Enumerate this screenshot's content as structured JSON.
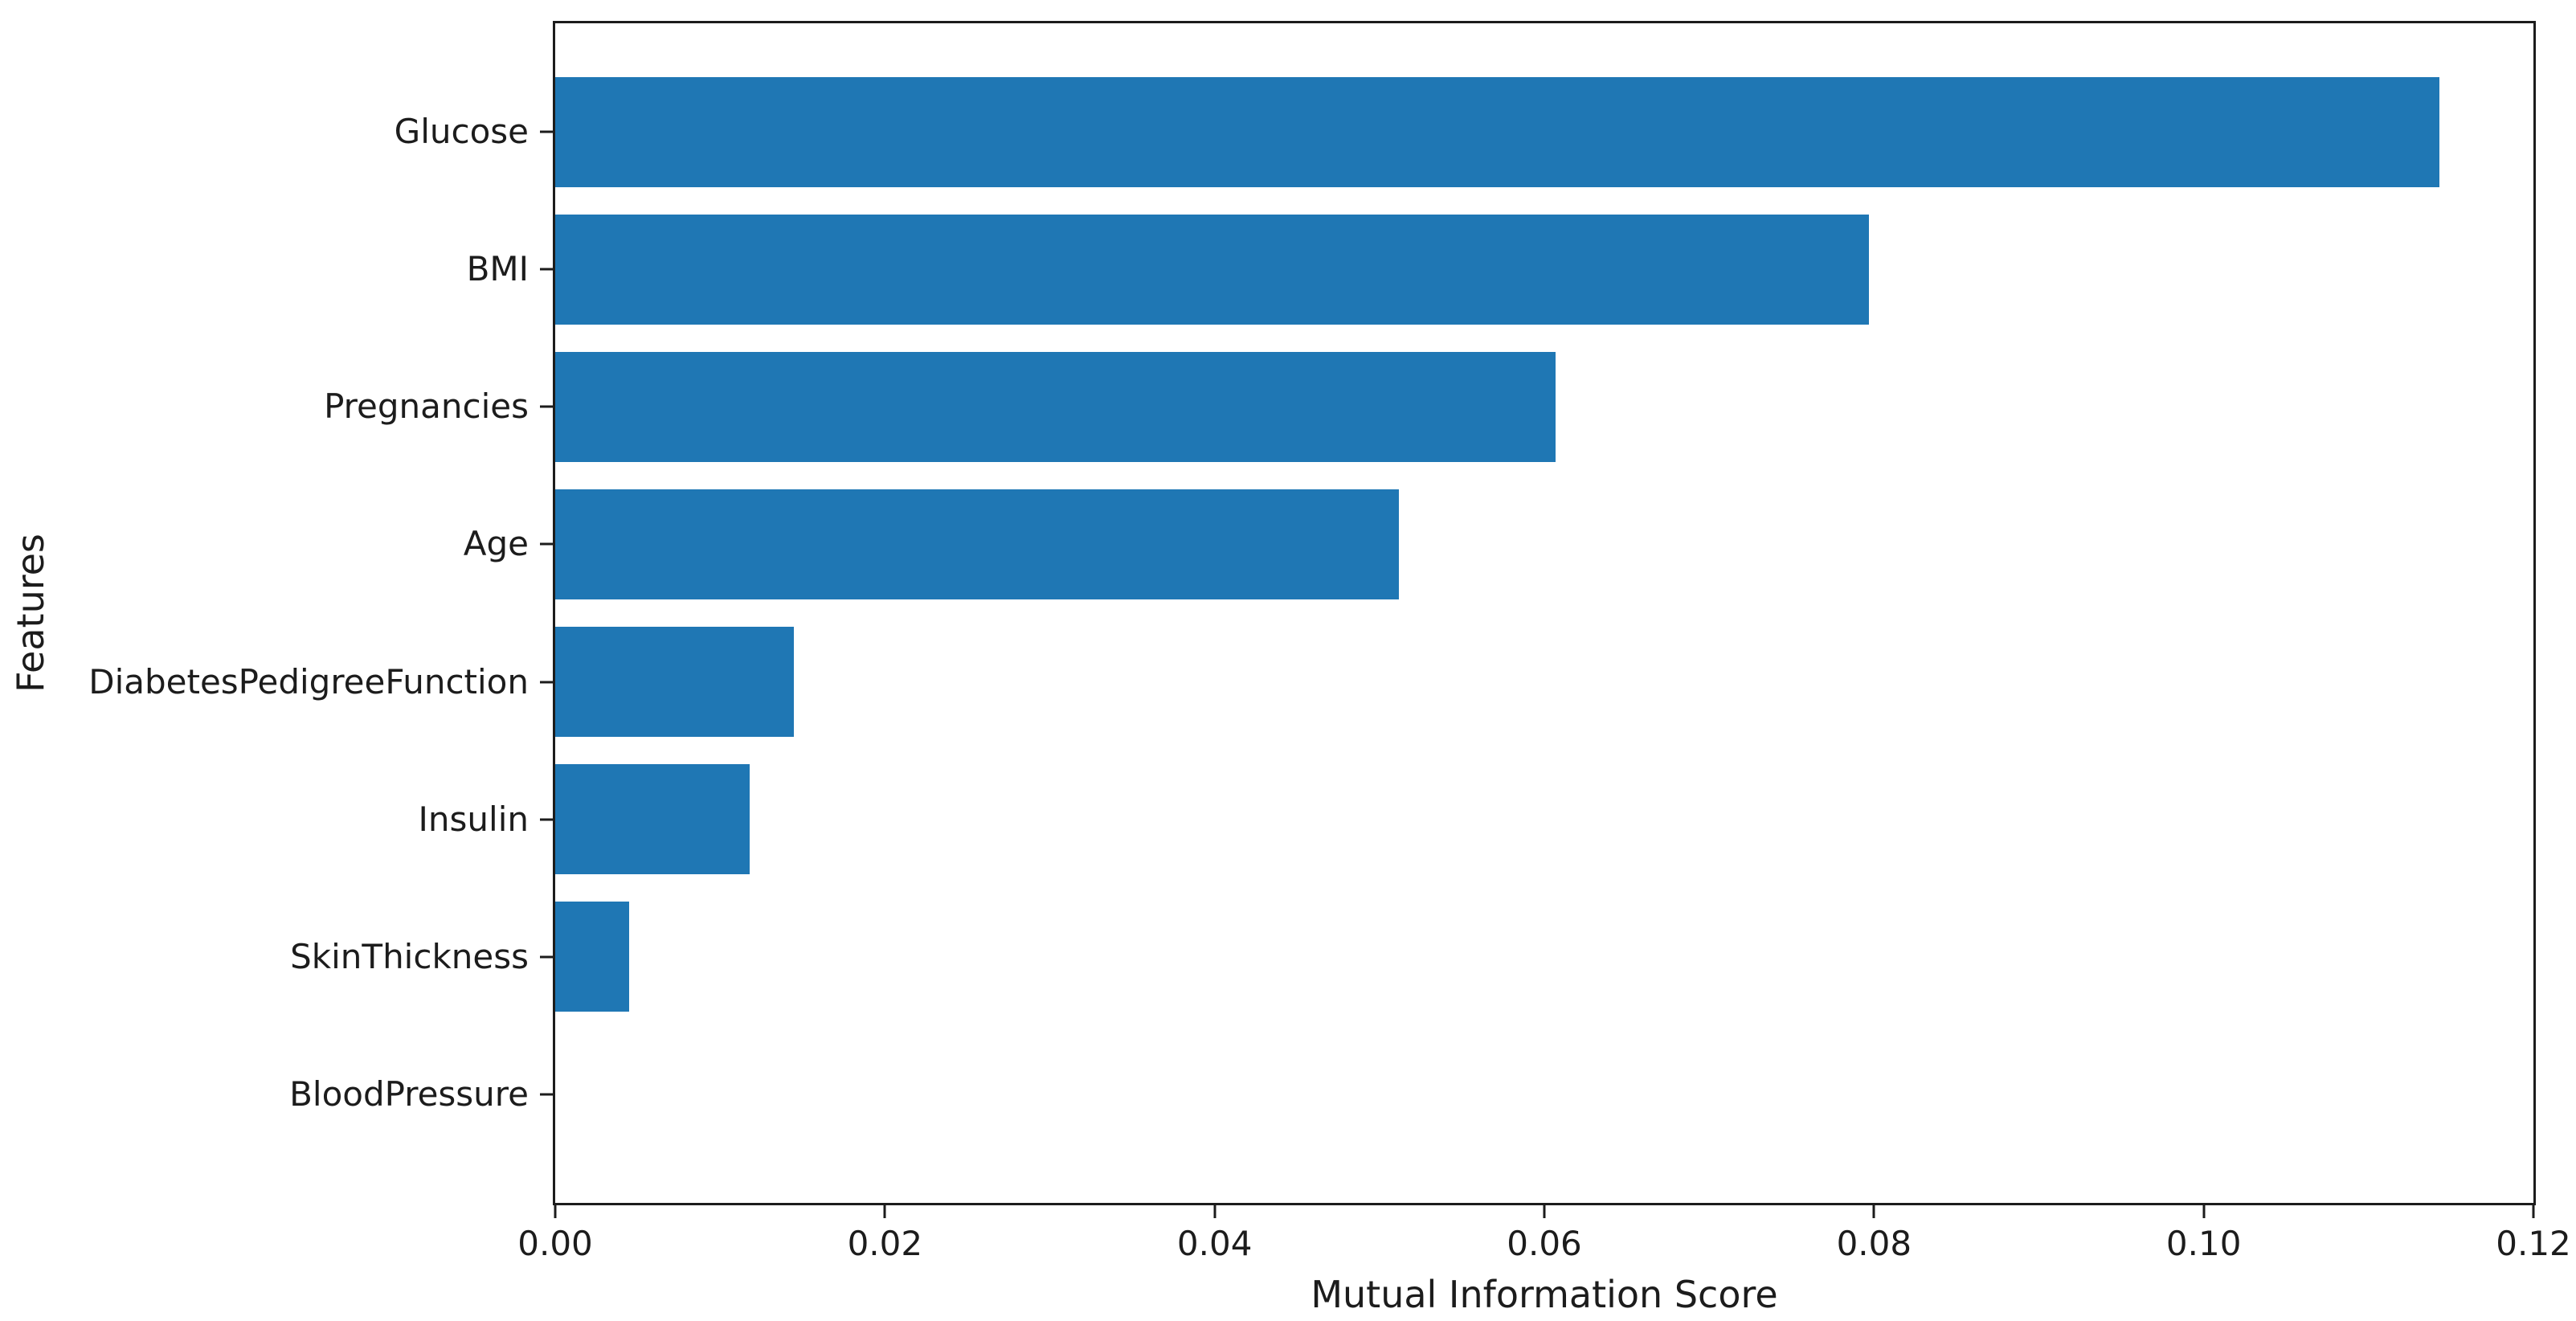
{
  "chart_data": {
    "type": "bar",
    "orientation": "horizontal",
    "title": "",
    "xlabel": "Mutual Information Score",
    "ylabel": "Features",
    "categories": [
      "Glucose",
      "BMI",
      "Pregnancies",
      "Age",
      "DiabetesPedigreeFunction",
      "Insulin",
      "SkinThickness",
      "BloodPressure"
    ],
    "values": [
      0.1143,
      0.0797,
      0.0607,
      0.0512,
      0.0145,
      0.0118,
      0.0045,
      0.0
    ],
    "xlim": [
      0,
      0.12
    ],
    "xtick_values": [
      0,
      0.02,
      0.04,
      0.06,
      0.08,
      0.1,
      0.12
    ],
    "xtick_labels": [
      "0.00",
      "0.02",
      "0.04",
      "0.06",
      "0.08",
      "0.10",
      "0.12"
    ],
    "bar_color": "#1f77b4",
    "axis_color": "#1c1c1c",
    "text_color": "#1c1c1c",
    "bar_relative_height": 0.8,
    "grid": false,
    "legend_position": "none"
  }
}
